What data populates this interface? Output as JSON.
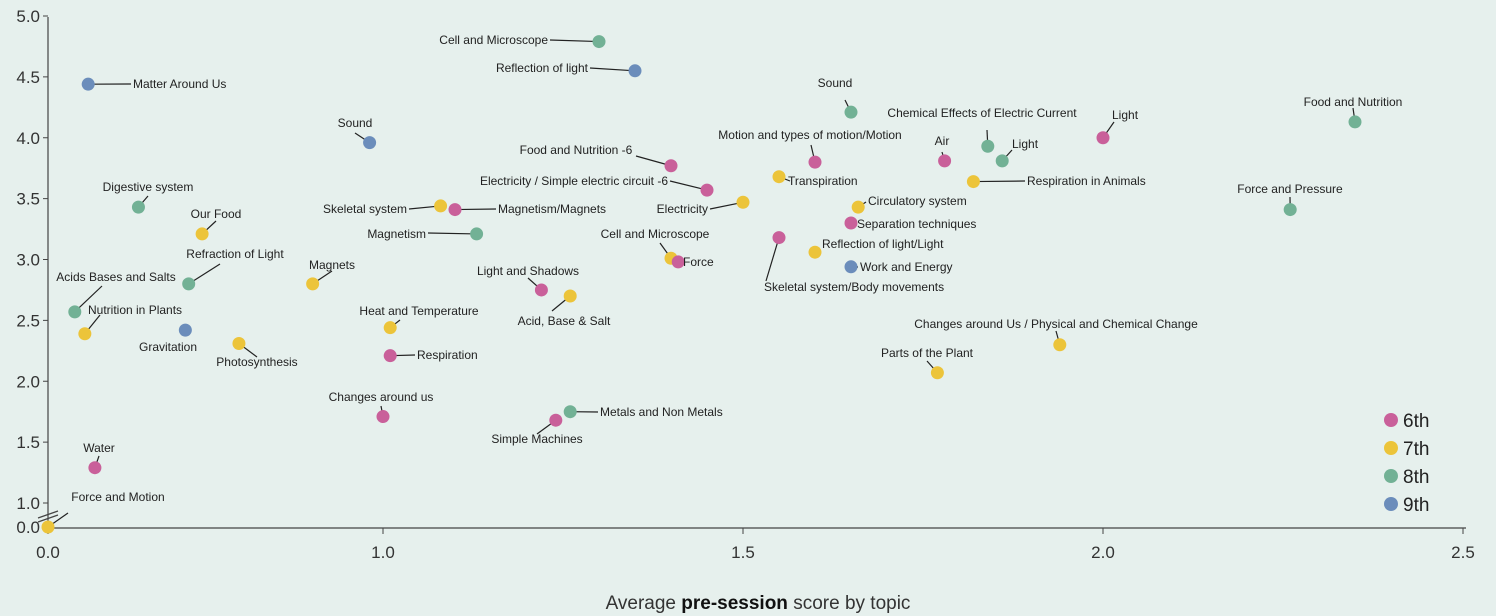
{
  "chart_data": {
    "type": "scatter",
    "xlabel_pre": "Average ",
    "xlabel_bold": "pre-session",
    "xlabel_post": " score by topic",
    "ylabel": "",
    "xlim": [
      0,
      2.5
    ],
    "ylim": [
      0,
      5.0
    ],
    "y_axis_break": true,
    "x_ticks": [
      "0.0",
      "1.0",
      "1.5",
      "2.0",
      "2.5"
    ],
    "y_ticks": [
      "0.0",
      "1.0",
      "1.5",
      "2.0",
      "2.5",
      "3.0",
      "3.5",
      "4.0",
      "4.5",
      "5.0"
    ],
    "grid": false,
    "legend_position": "bottom-right",
    "series": [
      {
        "name": "6th",
        "color": "#c9609a"
      },
      {
        "name": "7th",
        "color": "#ecc43a"
      },
      {
        "name": "8th",
        "color": "#72b195"
      },
      {
        "name": "9th",
        "color": "#6b8dbb"
      }
    ],
    "points": [
      {
        "label": "Cell and Microscope",
        "x": 1.3,
        "y": 4.79,
        "grade": "8th"
      },
      {
        "label": "Reflection of light",
        "x": 1.35,
        "y": 4.55,
        "grade": "9th"
      },
      {
        "label": "Matter Around Us",
        "x": 0.12,
        "y": 4.44,
        "grade": "9th"
      },
      {
        "label": "Sound",
        "x": 1.65,
        "y": 4.21,
        "grade": "8th"
      },
      {
        "label": "Food and Nutrition",
        "x": 2.35,
        "y": 4.13,
        "grade": "8th"
      },
      {
        "label": "Light",
        "x": 2.0,
        "y": 4.0,
        "grade": "6th"
      },
      {
        "label": "Sound",
        "x": 0.96,
        "y": 3.96,
        "grade": "9th"
      },
      {
        "label": "Chemical Effects of Electric Current",
        "x": 1.84,
        "y": 3.93,
        "grade": "8th"
      },
      {
        "label": "Light",
        "x": 1.86,
        "y": 3.81,
        "grade": "8th"
      },
      {
        "label": "Air",
        "x": 1.78,
        "y": 3.81,
        "grade": "6th"
      },
      {
        "label": "Motion and types of motion/Motion",
        "x": 1.6,
        "y": 3.8,
        "grade": "6th"
      },
      {
        "label": "Food and Nutrition -6",
        "x": 1.4,
        "y": 3.77,
        "grade": "6th"
      },
      {
        "label": "Transpiration",
        "x": 1.55,
        "y": 3.68,
        "grade": "7th"
      },
      {
        "label": "Respiration in Animals",
        "x": 1.82,
        "y": 3.64,
        "grade": "7th"
      },
      {
        "label": "Electricity / Simple electric circuit -6",
        "x": 1.45,
        "y": 3.57,
        "grade": "6th"
      },
      {
        "label": "Digestive system",
        "x": 0.27,
        "y": 3.43,
        "grade": "8th"
      },
      {
        "label": "Electricity",
        "x": 1.5,
        "y": 3.47,
        "grade": "7th"
      },
      {
        "label": "Circulatory system",
        "x": 1.66,
        "y": 3.43,
        "grade": "7th"
      },
      {
        "label": "Force and Pressure",
        "x": 2.26,
        "y": 3.41,
        "grade": "8th"
      },
      {
        "label": "Skeletal system",
        "x": 1.08,
        "y": 3.44,
        "grade": "7th"
      },
      {
        "label": "Magnetism/Magnets",
        "x": 1.1,
        "y": 3.41,
        "grade": "6th"
      },
      {
        "label": "Our Food",
        "x": 0.46,
        "y": 3.21,
        "grade": "7th"
      },
      {
        "label": "Separation techniques",
        "x": 1.65,
        "y": 3.3,
        "grade": "6th"
      },
      {
        "label": "Magnetism",
        "x": 1.13,
        "y": 3.21,
        "grade": "8th"
      },
      {
        "label": "Skeletal system/Body movements",
        "x": 1.55,
        "y": 3.18,
        "grade": "6th"
      },
      {
        "label": "Reflection of light/Light",
        "x": 1.6,
        "y": 3.06,
        "grade": "7th"
      },
      {
        "label": "Cell and Microscope",
        "x": 1.4,
        "y": 3.01,
        "grade": "7th"
      },
      {
        "label": "Force",
        "x": 1.41,
        "y": 2.98,
        "grade": "6th"
      },
      {
        "label": "Work and Energy",
        "x": 1.65,
        "y": 2.94,
        "grade": "9th"
      },
      {
        "label": "Refraction of Light",
        "x": 0.42,
        "y": 2.8,
        "grade": "8th"
      },
      {
        "label": "Magnets",
        "x": 0.79,
        "y": 2.8,
        "grade": "7th"
      },
      {
        "label": "Light and Shadows",
        "x": 1.22,
        "y": 2.75,
        "grade": "6th"
      },
      {
        "label": "Acid, Base & Salt",
        "x": 1.26,
        "y": 2.7,
        "grade": "7th"
      },
      {
        "label": "Acids Bases and Salts",
        "x": 0.08,
        "y": 2.57,
        "grade": "8th"
      },
      {
        "label": "Heat and Temperature",
        "x": 1.01,
        "y": 2.44,
        "grade": "7th"
      },
      {
        "label": "Gravitation",
        "x": 0.41,
        "y": 2.42,
        "grade": "9th"
      },
      {
        "label": "Nutrition in Plants",
        "x": 0.11,
        "y": 2.39,
        "grade": "7th"
      },
      {
        "label": "Changes around Us / Physical and Chemical Change",
        "x": 1.94,
        "y": 2.3,
        "grade": "7th"
      },
      {
        "label": "Photosynthesis",
        "x": 0.57,
        "y": 2.31,
        "grade": "7th"
      },
      {
        "label": "Respiration",
        "x": 1.01,
        "y": 2.21,
        "grade": "6th"
      },
      {
        "label": "Parts of the Plant",
        "x": 1.77,
        "y": 2.07,
        "grade": "7th"
      },
      {
        "label": "Metals and Non Metals",
        "x": 1.26,
        "y": 1.75,
        "grade": "8th"
      },
      {
        "label": "Changes around us",
        "x": 1.0,
        "y": 1.71,
        "grade": "6th"
      },
      {
        "label": "Simple Machines",
        "x": 1.24,
        "y": 1.68,
        "grade": "6th"
      },
      {
        "label": "Water",
        "x": 0.14,
        "y": 1.29,
        "grade": "6th"
      },
      {
        "label": "Force and Motion",
        "x": 0.0,
        "y": 0.0,
        "grade": "7th"
      }
    ]
  }
}
